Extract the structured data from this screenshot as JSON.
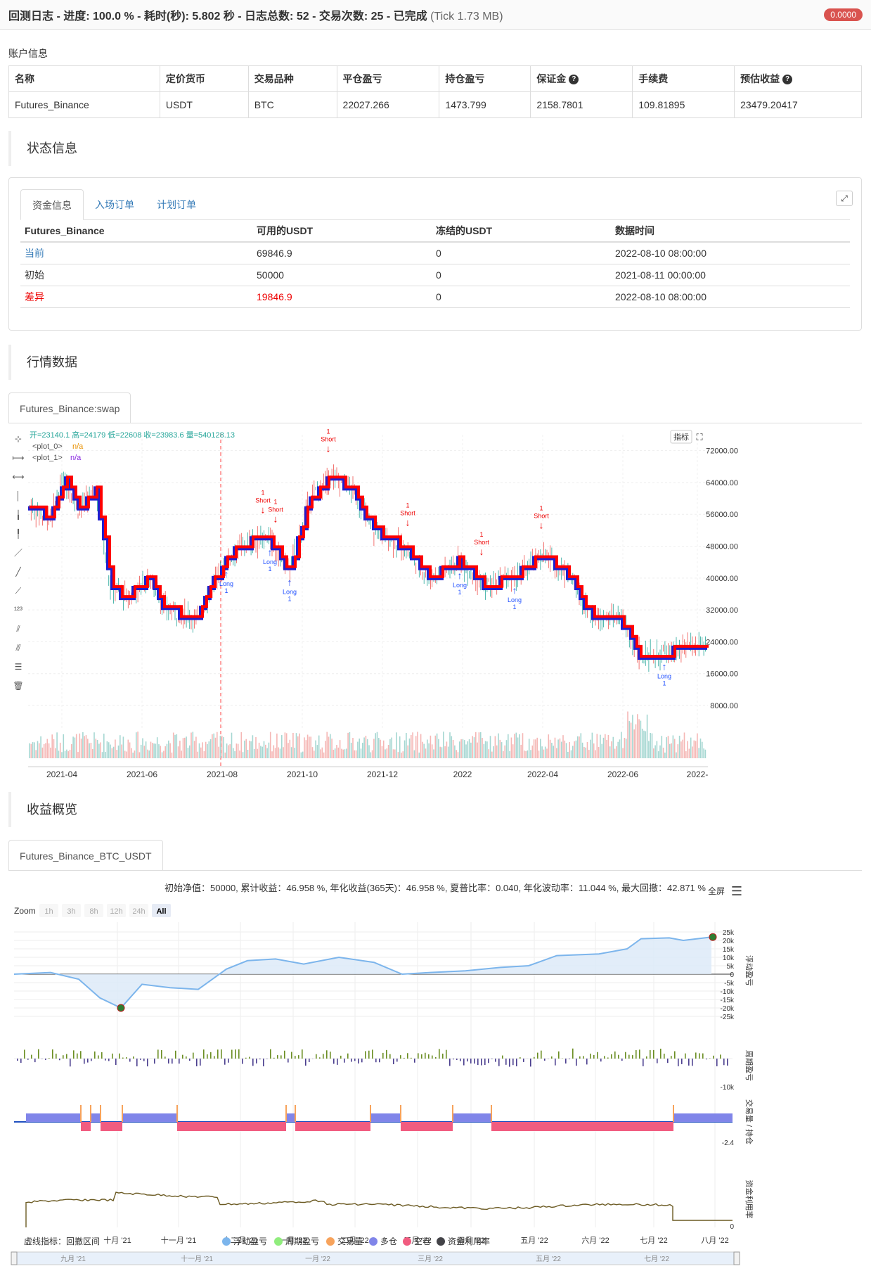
{
  "header": {
    "title_prefix": "回测日志 - 进度: 100.0 % - 耗时(秒): 5.802 秒 - 日志总数: 52 - 交易次数: 25 - 已完成",
    "tick": "(Tick 1.73 MB)",
    "badge": "0.0000"
  },
  "account": {
    "label": "账户信息",
    "columns": [
      "名称",
      "定价货币",
      "交易品种",
      "平仓盈亏",
      "持仓盈亏",
      "保证金",
      "手续费",
      "预估收益"
    ],
    "help_cols": [
      5,
      7
    ],
    "row": [
      "Futures_Binance",
      "USDT",
      "BTC",
      "22027.266",
      "1473.799",
      "2158.7801",
      "109.81895",
      "23479.20417"
    ]
  },
  "status": {
    "heading": "状态信息",
    "tabs": [
      "资金信息",
      "入场订单",
      "计划订单"
    ],
    "columns": [
      "Futures_Binance",
      "可用的USDT",
      "冻结的USDT",
      "数据时间"
    ],
    "rows": [
      {
        "name": "当前",
        "avail": "69846.9",
        "frozen": "0",
        "time": "2022-08-10 08:00:00"
      },
      {
        "name": "初始",
        "avail": "50000",
        "frozen": "0",
        "time": "2021-08-11 00:00:00"
      },
      {
        "name": "差异",
        "avail": "19846.9",
        "frozen": "0",
        "time": "2022-08-10 08:00:00"
      }
    ]
  },
  "market": {
    "heading": "行情数据",
    "tab": "Futures_Binance:swap",
    "ohlc": "开=23140.1 高=24179 低=22608 收=23983.6 量=540128.13",
    "plot0": "<plot_0>",
    "plot0_val": "n/a",
    "plot1": "<plot_1>",
    "plot1_val": "n/a",
    "indicator_btn": "指标",
    "y_ticks": [
      "72000.00",
      "64000.00",
      "56000.00",
      "48000.00",
      "40000.00",
      "32000.00",
      "24000.00",
      "16000.00",
      "8000.00"
    ],
    "x_ticks": [
      "2021-04",
      "2021-06",
      "2021-08",
      "2021-10",
      "2021-12",
      "2022",
      "2022-04",
      "2022-06",
      "2022-"
    ],
    "signals": [
      {
        "type": "Short",
        "n": "1"
      },
      {
        "type": "Short",
        "n": "1"
      },
      {
        "type": "Short",
        "n": "1"
      },
      {
        "type": "Short",
        "n": "1"
      },
      {
        "type": "Short",
        "n": "1"
      },
      {
        "type": "Short",
        "n": "1"
      },
      {
        "type": "Long",
        "n": "1"
      },
      {
        "type": "Long",
        "n": "1"
      },
      {
        "type": "Long",
        "n": "1"
      },
      {
        "type": "Long",
        "n": "1"
      },
      {
        "type": "Long",
        "n": "1"
      },
      {
        "type": "Long",
        "n": "1"
      }
    ]
  },
  "performance": {
    "heading": "收益概览",
    "tab": "Futures_Binance_BTC_USDT",
    "summary": "初始净值：50000, 累计收益：46.958 %, 年化收益(365天)：46.958 %, 夏普比率：0.040, 年化波动率：11.044 %, 最大回撤：42.871 %",
    "fullscreen": "全屏",
    "zoom_label": "Zoom",
    "zoom_options": [
      "1h",
      "3h",
      "8h",
      "12h",
      "24h",
      "All"
    ],
    "pnl_ticks": [
      "25k",
      "20k",
      "15k",
      "10k",
      "5k",
      "0",
      "-5k",
      "-10k",
      "-15k",
      "-20k",
      "-25k"
    ],
    "axis_titles": [
      "浮动盈亏",
      "周期盈亏",
      "交易量 / 持仓",
      "资金利用率"
    ],
    "period_tick": "-10k",
    "vol_tick": "-2.4",
    "util_tick": "0",
    "x_ticks": [
      "十月 '21",
      "十一月 '21",
      "十二月 '21",
      "一月 '22",
      "二月 '22",
      "三月 '22",
      "四月 '22",
      "五月 '22",
      "六月 '22",
      "七月 '22",
      "八月 '22"
    ],
    "legend": [
      "虚线指标：回撤区间",
      "浮动盈亏",
      "周期盈亏",
      "交易量",
      "多仓",
      "空仓",
      "资金利用率"
    ],
    "legend_colors": [
      "#7cb5ec",
      "#90ed7d",
      "#f7a35c",
      "#8085e9",
      "#f15c80",
      "#434348"
    ],
    "nav_ticks": [
      "九月 '21",
      "十一月 '21",
      "一月 '22",
      "三月 '22",
      "五月 '22",
      "七月 '22"
    ]
  },
  "colors": {
    "up": "#26a69a",
    "down": "#ef5350",
    "red_line": "#ff0000",
    "blue_line": "#1f1fcf",
    "green_line": "#00a000",
    "pnl_fill": "#dbe9f8",
    "pnl_line": "#7cb5ec",
    "long_bar": "#8085e9",
    "short_bar": "#f15c80"
  }
}
